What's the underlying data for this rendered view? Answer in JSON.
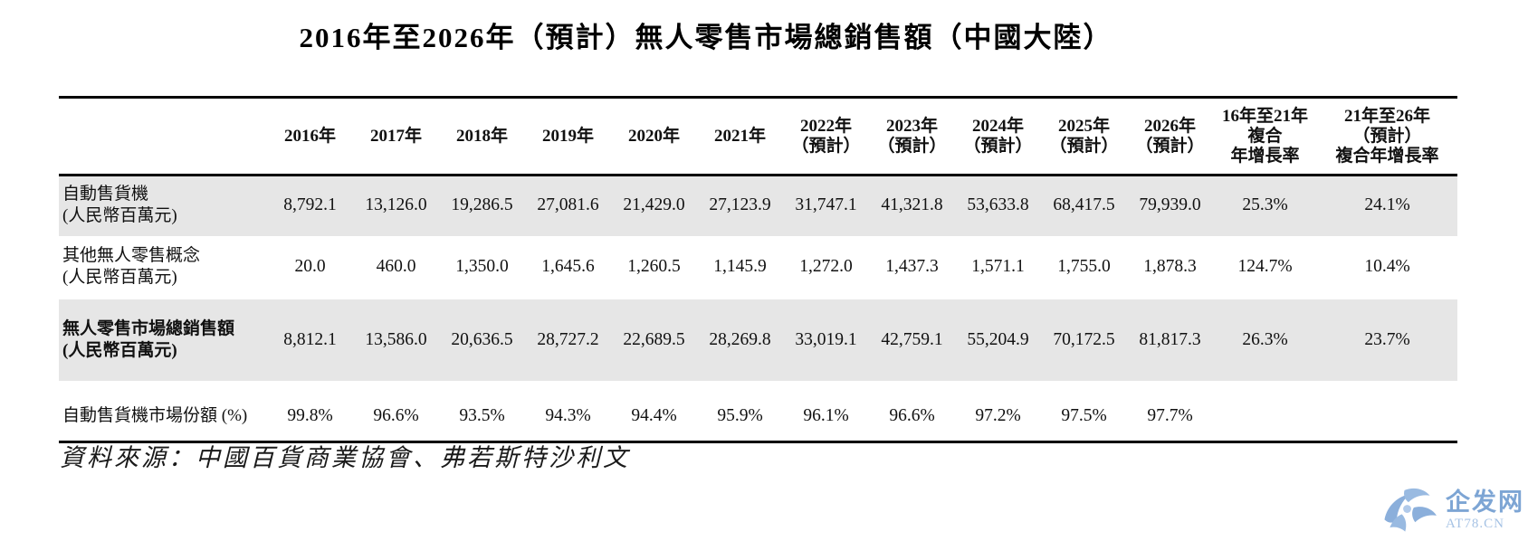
{
  "title": "2016年至2026年（預計）無人零售市場總銷售額（中國大陸）",
  "table": {
    "columns": [
      [
        "2016年"
      ],
      [
        "2017年"
      ],
      [
        "2018年"
      ],
      [
        "2019年"
      ],
      [
        "2020年"
      ],
      [
        "2021年"
      ],
      [
        "2022年",
        "（預計）"
      ],
      [
        "2023年",
        "（預計）"
      ],
      [
        "2024年",
        "（預計）"
      ],
      [
        "2025年",
        "（預計）"
      ],
      [
        "2026年",
        "（預計）"
      ],
      [
        "16年至21年",
        "複合",
        "年增長率"
      ],
      [
        "21年至26年",
        "（預計）",
        "複合年增長率"
      ]
    ],
    "rows": [
      {
        "label": [
          "自動售貨機",
          "(人民幣百萬元)"
        ],
        "bold": false,
        "shaded": true,
        "values": [
          "8,792.1",
          "13,126.0",
          "19,286.5",
          "27,081.6",
          "21,429.0",
          "27,123.9",
          "31,747.1",
          "41,321.8",
          "53,633.8",
          "68,417.5",
          "79,939.0",
          "25.3%",
          "24.1%"
        ]
      },
      {
        "label": [
          "其他無人零售概念",
          "(人民幣百萬元)"
        ],
        "bold": false,
        "shaded": false,
        "values": [
          "20.0",
          "460.0",
          "1,350.0",
          "1,645.6",
          "1,260.5",
          "1,145.9",
          "1,272.0",
          "1,437.3",
          "1,571.1",
          "1,755.0",
          "1,878.3",
          "124.7%",
          "10.4%"
        ]
      },
      {
        "label": [
          "無人零售市場總銷售額",
          "(人民幣百萬元)"
        ],
        "bold": true,
        "shaded": true,
        "values": [
          "8,812.1",
          "13,586.0",
          "20,636.5",
          "28,727.2",
          "22,689.5",
          "28,269.8",
          "33,019.1",
          "42,759.1",
          "55,204.9",
          "70,172.5",
          "81,817.3",
          "26.3%",
          "23.7%"
        ]
      },
      {
        "label": [
          "自動售貨機市場份額 (%)"
        ],
        "bold": false,
        "shaded": false,
        "values": [
          "99.8%",
          "96.6%",
          "93.5%",
          "94.3%",
          "94.4%",
          "95.9%",
          "96.1%",
          "96.6%",
          "97.2%",
          "97.5%",
          "97.7%",
          "",
          ""
        ]
      }
    ]
  },
  "source": "資料來源：中國百貨商業協會、弗若斯特沙利文",
  "watermark": {
    "logo_icon": "pinwheel-logo-icon",
    "site_name": "企发网",
    "site_url": "AT78.CN"
  },
  "colors": {
    "shaded_row": "#e6e6e6",
    "rule": "#000000",
    "watermark_blue": "#7fa7d8",
    "watermark_text": "#6f9cd0",
    "watermark_sub": "#9cbce2"
  }
}
